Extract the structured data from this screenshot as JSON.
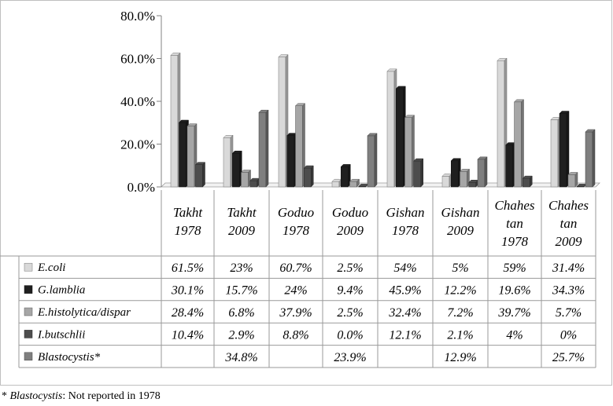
{
  "chart_data": {
    "type": "bar",
    "categories": [
      [
        "Takht",
        "1978"
      ],
      [
        "Takht",
        "2009"
      ],
      [
        "Goduo",
        "1978"
      ],
      [
        "Goduo",
        "2009"
      ],
      [
        "Gishan",
        "1978"
      ],
      [
        "Gishan",
        "2009"
      ],
      [
        "Chahes",
        "tan",
        "1978"
      ],
      [
        "Chahes",
        "tan",
        "2009"
      ]
    ],
    "series": [
      {
        "name": "E.coli",
        "color": "#d9d9d9",
        "values": [
          61.5,
          23,
          60.7,
          2.5,
          54,
          5,
          59,
          31.4
        ],
        "labels": [
          "61.5%",
          "23%",
          "60.7%",
          "2.5%",
          "54%",
          "5%",
          "59%",
          "31.4%"
        ]
      },
      {
        "name": "G.lamblia",
        "color": "#1f1f1f",
        "values": [
          30.1,
          15.7,
          24,
          9.4,
          45.9,
          12.2,
          19.6,
          34.3
        ],
        "labels": [
          "30.1%",
          "15.7%",
          "24%",
          "9.4%",
          "45.9%",
          "12.2%",
          "19.6%",
          "34.3%"
        ]
      },
      {
        "name": "E.histolytica/dispar",
        "color": "#a6a6a6",
        "values": [
          28.4,
          6.8,
          37.9,
          2.5,
          32.4,
          7.2,
          39.7,
          5.7
        ],
        "labels": [
          "28.4%",
          "6.8%",
          "37.9%",
          "2.5%",
          "32.4%",
          "7.2%",
          "39.7%",
          "5.7%"
        ]
      },
      {
        "name": "I.butschlii",
        "color": "#4d4d4d",
        "values": [
          10.4,
          2.9,
          8.8,
          0.0,
          12.1,
          2.1,
          4,
          0
        ],
        "labels": [
          "10.4%",
          "2.9%",
          "8.8%",
          "0.0%",
          "12.1%",
          "2.1%",
          "4%",
          "0%"
        ]
      },
      {
        "name": "Blastocystis*",
        "color": "#7f7f7f",
        "values": [
          null,
          34.8,
          null,
          23.9,
          null,
          12.9,
          null,
          25.7
        ],
        "labels": [
          "",
          "34.8%",
          "",
          "23.9%",
          "",
          "12.9%",
          "",
          "25.7%"
        ]
      }
    ],
    "y_ticks": [
      "0.0%",
      "20.0%",
      "40.0%",
      "60.0%",
      "80.0%"
    ],
    "ylim": [
      0,
      80
    ],
    "grid": false,
    "legend": "data-table"
  },
  "footnote": {
    "term": "Blastocystis",
    "text": ": Not reported in 1978",
    "marker": "* "
  }
}
